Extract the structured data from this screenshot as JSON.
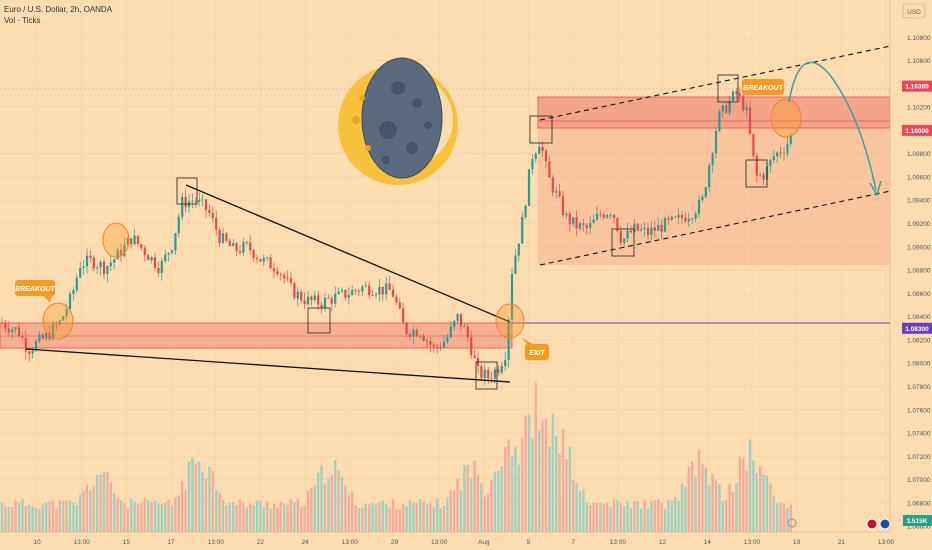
{
  "header": {
    "title": "Euro / U.S. Dollar, 2h, OANDA",
    "subtitle": "Vol · Ticks",
    "currency": "USD",
    "volume_value": "3.515K"
  },
  "colors": {
    "background": "#fcdcb0",
    "up": "#2a9d8f",
    "down": "#e04b4b",
    "zone_fill": "#f08a78",
    "zone_line": "#e44b5a",
    "orange_tag": "#f59a23",
    "purple": "#6a3fb3",
    "teal_arrow": "#3aa39a"
  },
  "chart_data": {
    "type": "candlestick",
    "title": "Euro / U.S. Dollar, 2h, OANDA",
    "y_axis": {
      "ticks": [
        "1.10800",
        "1.10600",
        "1.10400",
        "1.10200",
        "1.10000",
        "1.09800",
        "1.09600",
        "1.09400",
        "1.09200",
        "1.09000",
        "1.08800",
        "1.08600",
        "1.08400",
        "1.08200",
        "1.08000",
        "1.07800",
        "1.07600",
        "1.07400",
        "1.07200",
        "1.07000",
        "1.06800",
        "1.06600"
      ],
      "values": [
        1.108,
        1.106,
        1.104,
        1.102,
        1.1,
        1.098,
        1.096,
        1.094,
        1.092,
        1.09,
        1.088,
        1.086,
        1.084,
        1.082,
        1.08,
        1.078,
        1.076,
        1.074,
        1.072,
        1.07,
        1.068,
        1.066
      ],
      "ylim": [
        1.0655,
        1.1112
      ]
    },
    "x_axis": {
      "ticks": [
        "10",
        "13:00",
        "15",
        "17",
        "13:00",
        "22",
        "24",
        "13:00",
        "29",
        "13:00",
        "Aug",
        "5",
        "7",
        "13:00",
        "12",
        "14",
        "13:00",
        "19",
        "21",
        "13:00"
      ]
    },
    "price_tags": [
      {
        "label": "1.10380",
        "value": 1.1038,
        "color": "#e44b5a"
      },
      {
        "label": "1.10000",
        "value": 1.1,
        "color": "#e44b5a"
      },
      {
        "label": "1.08300",
        "value": 1.083,
        "color": "#6a3fb3"
      }
    ],
    "path": [
      [
        0,
        1.0835
      ],
      [
        18,
        1.0828
      ],
      [
        28,
        1.0812
      ],
      [
        45,
        1.0822
      ],
      [
        60,
        1.0835
      ],
      [
        72,
        1.0858
      ],
      [
        80,
        1.0885
      ],
      [
        92,
        1.0888
      ],
      [
        105,
        1.0882
      ],
      [
        118,
        1.0893
      ],
      [
        132,
        1.0908
      ],
      [
        148,
        1.0893
      ],
      [
        160,
        1.0882
      ],
      [
        172,
        1.0902
      ],
      [
        182,
        1.0938
      ],
      [
        195,
        1.094
      ],
      [
        208,
        1.0931
      ],
      [
        220,
        1.0908
      ],
      [
        234,
        1.0897
      ],
      [
        248,
        1.09
      ],
      [
        262,
        1.0888
      ],
      [
        278,
        1.0882
      ],
      [
        292,
        1.0862
      ],
      [
        306,
        1.0854
      ],
      [
        320,
        1.0852
      ],
      [
        334,
        1.0856
      ],
      [
        348,
        1.086
      ],
      [
        362,
        1.0865
      ],
      [
        376,
        1.0864
      ],
      [
        392,
        1.0862
      ],
      [
        405,
        1.0828
      ],
      [
        420,
        1.0828
      ],
      [
        434,
        1.0812
      ],
      [
        446,
        1.082
      ],
      [
        458,
        1.084
      ],
      [
        468,
        1.0822
      ],
      [
        478,
        1.0792
      ],
      [
        488,
        1.0788
      ],
      [
        498,
        1.0796
      ],
      [
        506,
        1.081
      ],
      [
        512,
        1.088
      ],
      [
        522,
        1.092
      ],
      [
        532,
        1.0978
      ],
      [
        540,
        1.0992
      ],
      [
        548,
        1.096
      ],
      [
        556,
        1.0945
      ],
      [
        566,
        1.0925
      ],
      [
        576,
        1.0918
      ],
      [
        588,
        1.0915
      ],
      [
        600,
        1.0928
      ],
      [
        612,
        1.0932
      ],
      [
        622,
        1.0905
      ],
      [
        634,
        1.0915
      ],
      [
        648,
        1.0912
      ],
      [
        662,
        1.0918
      ],
      [
        676,
        1.0922
      ],
      [
        692,
        1.093
      ],
      [
        702,
        1.0938
      ],
      [
        710,
        1.0975
      ],
      [
        718,
        1.101
      ],
      [
        726,
        1.102
      ],
      [
        736,
        1.1032
      ],
      [
        746,
        1.1018
      ],
      [
        756,
        1.096
      ],
      [
        764,
        1.0962
      ],
      [
        774,
        1.0978
      ],
      [
        784,
        1.0985
      ],
      [
        792,
        1.0996
      ]
    ],
    "volume_peaks": [
      [
        100,
        0.45
      ],
      [
        200,
        0.6
      ],
      [
        330,
        0.52
      ],
      [
        470,
        0.5
      ],
      [
        510,
        0.75
      ],
      [
        535,
        1.0
      ],
      [
        555,
        0.85
      ],
      [
        700,
        0.55
      ],
      [
        750,
        0.62
      ]
    ],
    "annotations": [
      {
        "text": "BREAKOUT",
        "kind": "callout"
      },
      {
        "text": "BREAKOUT",
        "kind": "callout"
      },
      {
        "text": "EXIT",
        "kind": "callout"
      }
    ]
  }
}
